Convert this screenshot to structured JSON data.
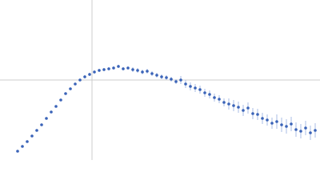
{
  "chart_data": {
    "type": "scatter",
    "color": "#3a63b8",
    "error_color": "#a9bde6",
    "xlim": [
      0,
      400
    ],
    "ylim": [
      0,
      200
    ],
    "vlines": [
      115
    ],
    "hlines": [
      100
    ],
    "x": [
      22,
      28,
      34,
      40,
      46,
      52,
      58,
      64,
      70,
      76,
      82,
      88,
      94,
      100,
      106,
      112,
      118,
      124,
      130,
      136,
      142,
      148,
      154,
      160,
      166,
      172,
      178,
      184,
      190,
      196,
      202,
      208,
      214,
      220,
      226,
      232,
      238,
      244,
      250,
      256,
      262,
      268,
      274,
      280,
      286,
      292,
      298,
      304,
      310,
      316,
      322,
      328,
      334,
      340,
      346,
      352,
      358,
      364,
      370,
      376,
      382,
      388,
      394
    ],
    "values": [
      11,
      17,
      23,
      30,
      37,
      44,
      52,
      60,
      67,
      75,
      83,
      89,
      95,
      100,
      104,
      107,
      110,
      112,
      113,
      114,
      115,
      117,
      114,
      115,
      113,
      112,
      110,
      111,
      108,
      106,
      104,
      103,
      101,
      98,
      100,
      95,
      92,
      90,
      88,
      84,
      82,
      78,
      76,
      72,
      70,
      68,
      66,
      62,
      65,
      58,
      57,
      52,
      50,
      46,
      48,
      44,
      42,
      45,
      38,
      36,
      40,
      34,
      37
    ],
    "errors": [
      1,
      1,
      1,
      1,
      1,
      1,
      1,
      1,
      1,
      1,
      1,
      1,
      1,
      1,
      2,
      2,
      2,
      2,
      2,
      2,
      2,
      2,
      2,
      2,
      3,
      3,
      3,
      3,
      3,
      3,
      3,
      3,
      3,
      3,
      5,
      5,
      5,
      5,
      5,
      5,
      5,
      5,
      5,
      5,
      7,
      7,
      7,
      7,
      7,
      7,
      7,
      7,
      7,
      7,
      9,
      9,
      9,
      9,
      9,
      9,
      9,
      9,
      9
    ]
  }
}
